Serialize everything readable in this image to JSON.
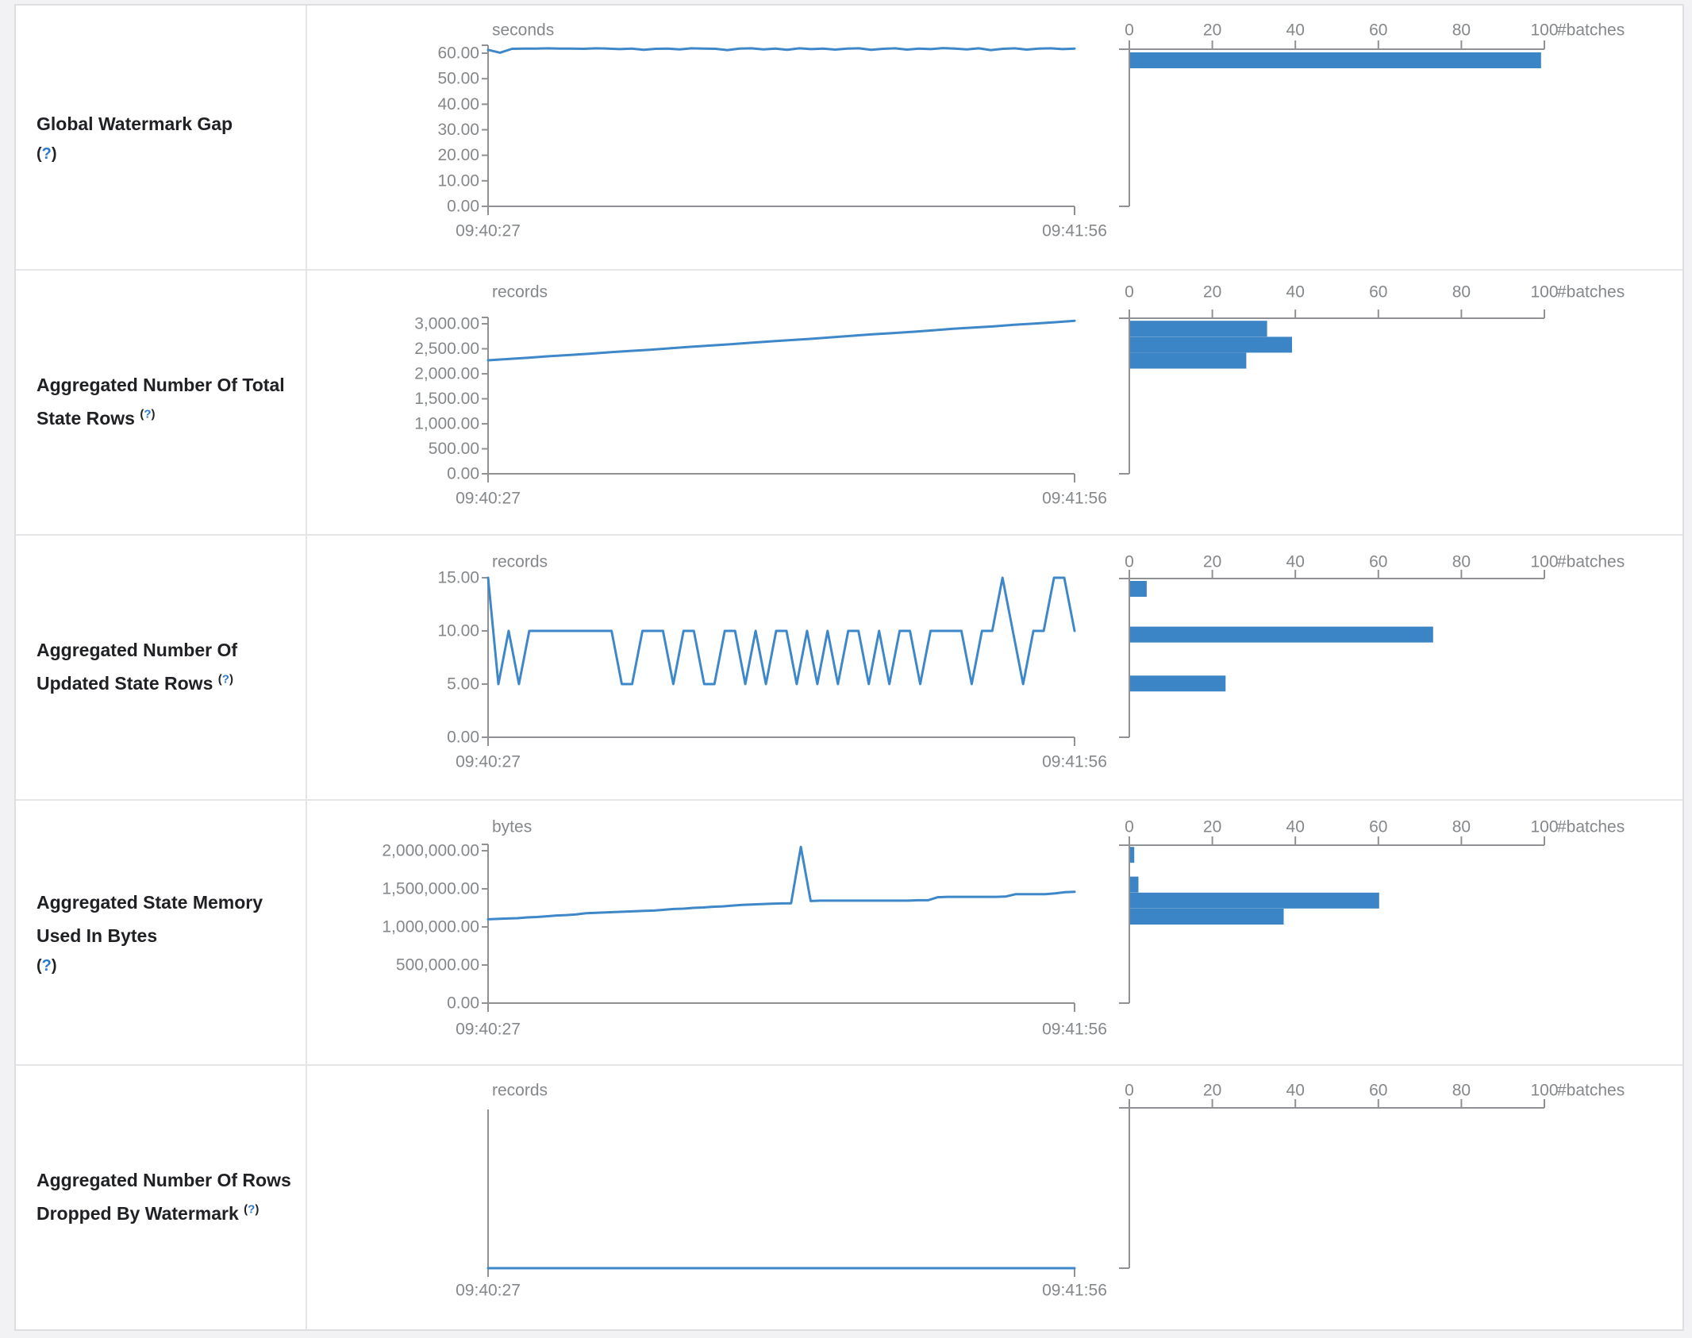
{
  "colors": {
    "accent_blue": "#3b84c6",
    "line_blue": "#3e88c9",
    "axis_gray": "#8f9194",
    "text_gray": "#85888b",
    "label_dark": "#202124",
    "help_blue": "#2979d0",
    "border": "#e4e5e7"
  },
  "chart_data": [
    {
      "name": "Global Watermark Gap",
      "help_label": "(?)",
      "timeline": {
        "type": "line",
        "unit": "seconds",
        "x_start": "09:40:27",
        "x_end": "09:41:56",
        "y_ticks": [
          {
            "v": 60,
            "label": "60.00"
          },
          {
            "v": 50,
            "label": "50.00"
          },
          {
            "v": 40,
            "label": "40.00"
          },
          {
            "v": 30,
            "label": "30.00"
          },
          {
            "v": 20,
            "label": "20.00"
          },
          {
            "v": 10,
            "label": "10.00"
          },
          {
            "v": 0,
            "label": "0.00"
          }
        ],
        "values": [
          61.3,
          60.2,
          61.7,
          61.8,
          61.8,
          61.9,
          61.8,
          61.8,
          61.7,
          61.9,
          61.8,
          61.6,
          61.8,
          61.3,
          61.7,
          61.8,
          61.5,
          61.9,
          61.8,
          61.7,
          61.2,
          61.8,
          61.9,
          61.5,
          61.8,
          61.3,
          61.9,
          61.6,
          61.8,
          61.4,
          61.8,
          61.9,
          61.3,
          61.7,
          61.9,
          61.4,
          61.8,
          61.6,
          62.0,
          61.8,
          61.5,
          61.9,
          61.2,
          61.7,
          61.9,
          61.4,
          61.8,
          61.9,
          61.6,
          61.8
        ]
      },
      "histogram": {
        "type": "bar",
        "xlabel": "#batches",
        "x_ticks": [
          {
            "v": 0,
            "label": "0"
          },
          {
            "v": 20,
            "label": "20"
          },
          {
            "v": 40,
            "label": "40"
          },
          {
            "v": 60,
            "label": "60"
          },
          {
            "v": 80,
            "label": "80"
          },
          {
            "v": 100,
            "label": "100"
          }
        ],
        "xlim": [
          0,
          100
        ],
        "bars": [
          {
            "count": 99,
            "bucket_top": 60.3
          }
        ]
      }
    },
    {
      "name": "Aggregated Number Of Total State Rows",
      "help_label": "(?)",
      "timeline": {
        "type": "line",
        "unit": "records",
        "x_start": "09:40:27",
        "x_end": "09:41:56",
        "y_ticks": [
          {
            "v": 3000,
            "label": "3,000.00"
          },
          {
            "v": 2500,
            "label": "2,500.00"
          },
          {
            "v": 2000,
            "label": "2,000.00"
          },
          {
            "v": 1500,
            "label": "1,500.00"
          },
          {
            "v": 1000,
            "label": "1,000.00"
          },
          {
            "v": 500,
            "label": "500.00"
          },
          {
            "v": 0,
            "label": "0.00"
          }
        ],
        "values": [
          2270,
          2295,
          2320,
          2350,
          2375,
          2400,
          2430,
          2455,
          2480,
          2510,
          2540,
          2565,
          2590,
          2620,
          2650,
          2675,
          2700,
          2730,
          2760,
          2790,
          2815,
          2840,
          2870,
          2900,
          2925,
          2950,
          2980,
          3005,
          3030,
          3060
        ]
      },
      "histogram": {
        "type": "bar",
        "xlabel": "#batches",
        "x_ticks": [
          {
            "v": 0,
            "label": "0"
          },
          {
            "v": 20,
            "label": "20"
          },
          {
            "v": 40,
            "label": "40"
          },
          {
            "v": 60,
            "label": "60"
          },
          {
            "v": 80,
            "label": "80"
          },
          {
            "v": 100,
            "label": "100"
          }
        ],
        "xlim": [
          0,
          100
        ],
        "bars": [
          {
            "count": 33,
            "bucket_top": 3060
          },
          {
            "count": 39,
            "bucket_top": 2740
          },
          {
            "count": 28,
            "bucket_top": 2420
          }
        ]
      }
    },
    {
      "name": "Aggregated Number Of Updated State Rows",
      "help_label": "(?)",
      "timeline": {
        "type": "line",
        "unit": "records",
        "x_start": "09:40:27",
        "x_end": "09:41:56",
        "y_ticks": [
          {
            "v": 15,
            "label": "15.00"
          },
          {
            "v": 10,
            "label": "10.00"
          },
          {
            "v": 5,
            "label": "5.00"
          },
          {
            "v": 0,
            "label": "0.00"
          }
        ],
        "values": [
          15,
          5,
          10,
          5,
          10,
          10,
          10,
          10,
          10,
          10,
          10,
          10,
          10,
          5,
          5,
          10,
          10,
          10,
          5,
          10,
          10,
          5,
          5,
          10,
          10,
          5,
          10,
          5,
          10,
          10,
          5,
          10,
          5,
          10,
          5,
          10,
          10,
          5,
          10,
          5,
          10,
          10,
          5,
          10,
          10,
          10,
          10,
          5,
          10,
          10,
          15,
          10,
          5,
          10,
          10,
          15,
          15,
          10
        ]
      },
      "histogram": {
        "type": "bar",
        "xlabel": "#batches",
        "x_ticks": [
          {
            "v": 0,
            "label": "0"
          },
          {
            "v": 20,
            "label": "20"
          },
          {
            "v": 40,
            "label": "40"
          },
          {
            "v": 60,
            "label": "60"
          },
          {
            "v": 80,
            "label": "80"
          },
          {
            "v": 100,
            "label": "100"
          }
        ],
        "xlim": [
          0,
          100
        ],
        "bars": [
          {
            "count": 4,
            "bucket_top": 14.7
          },
          {
            "count": 73,
            "bucket_top": 10.4
          },
          {
            "count": 23,
            "bucket_top": 5.8
          }
        ]
      }
    },
    {
      "name": "Aggregated State Memory Used In Bytes",
      "help_label": "(?)",
      "timeline": {
        "type": "line",
        "unit": "bytes",
        "x_start": "09:40:27",
        "x_end": "09:41:56",
        "y_ticks": [
          {
            "v": 2000000,
            "label": "2,000,000.00"
          },
          {
            "v": 1500000,
            "label": "1,500,000.00"
          },
          {
            "v": 1000000,
            "label": "1,000,000.00"
          },
          {
            "v": 500000,
            "label": "500,000.00"
          },
          {
            "v": 0,
            "label": "0.00"
          }
        ],
        "values": [
          1100000,
          1105000,
          1110000,
          1115000,
          1125000,
          1130000,
          1140000,
          1150000,
          1155000,
          1165000,
          1180000,
          1185000,
          1190000,
          1195000,
          1200000,
          1205000,
          1210000,
          1215000,
          1225000,
          1235000,
          1240000,
          1250000,
          1255000,
          1265000,
          1270000,
          1280000,
          1290000,
          1295000,
          1300000,
          1305000,
          1308000,
          1310000,
          2050000,
          1340000,
          1345000,
          1345000,
          1345000,
          1345000,
          1345000,
          1345000,
          1345000,
          1345000,
          1345000,
          1345000,
          1350000,
          1350000,
          1390000,
          1395000,
          1395000,
          1395000,
          1395000,
          1395000,
          1395000,
          1400000,
          1430000,
          1430000,
          1430000,
          1430000,
          1440000,
          1455000,
          1460000
        ]
      },
      "histogram": {
        "type": "bar",
        "xlabel": "#batches",
        "x_ticks": [
          {
            "v": 0,
            "label": "0"
          },
          {
            "v": 20,
            "label": "20"
          },
          {
            "v": 40,
            "label": "40"
          },
          {
            "v": 60,
            "label": "60"
          },
          {
            "v": 80,
            "label": "80"
          },
          {
            "v": 100,
            "label": "100"
          }
        ],
        "xlim": [
          0,
          100
        ],
        "bars": [
          {
            "count": 1,
            "bucket_top": 2050000
          },
          {
            "count": 2,
            "bucket_top": 1660000
          },
          {
            "count": 60,
            "bucket_top": 1450000
          },
          {
            "count": 37,
            "bucket_top": 1240000
          }
        ]
      }
    },
    {
      "name": "Aggregated Number Of Rows Dropped By Watermark",
      "help_label": "(?)",
      "timeline": {
        "type": "line",
        "unit": "records",
        "x_start": "09:40:27",
        "x_end": "09:41:56",
        "y_ticks": [],
        "values": [
          0,
          0,
          0,
          0,
          0,
          0,
          0,
          0,
          0,
          0,
          0,
          0,
          0,
          0,
          0,
          0,
          0,
          0,
          0,
          0,
          0,
          0,
          0,
          0,
          0,
          0,
          0,
          0,
          0,
          0
        ]
      },
      "histogram": {
        "type": "bar",
        "xlabel": "#batches",
        "x_ticks": [
          {
            "v": 0,
            "label": "0"
          },
          {
            "v": 20,
            "label": "20"
          },
          {
            "v": 40,
            "label": "40"
          },
          {
            "v": 60,
            "label": "60"
          },
          {
            "v": 80,
            "label": "80"
          },
          {
            "v": 100,
            "label": "100"
          }
        ],
        "xlim": [
          0,
          100
        ],
        "bars": []
      }
    }
  ]
}
